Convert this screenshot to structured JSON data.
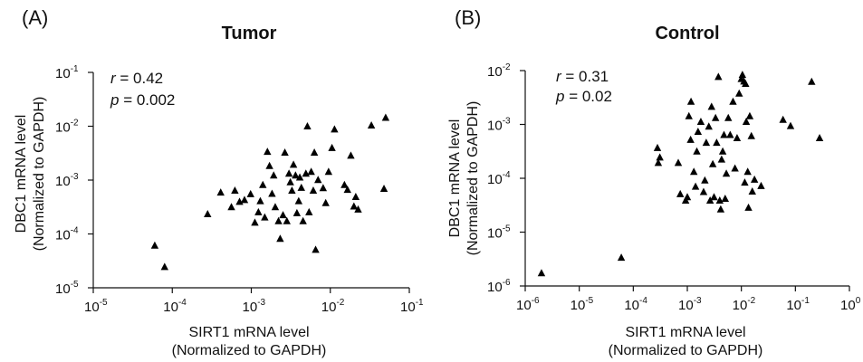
{
  "chart_data": [
    {
      "type": "scatter",
      "panel_label": "(A)",
      "title": "Tumor",
      "xlabel": [
        "SIRT1 mRNA level",
        "(Normalized to GAPDH)"
      ],
      "ylabel": [
        "DBC1 mRNA level",
        "(Normalized to GAPDH)"
      ],
      "xscale": "log",
      "yscale": "log",
      "xlim": [
        1e-05,
        0.1
      ],
      "ylim": [
        1e-05,
        0.1
      ],
      "x_ticks": [
        {
          "base": "10",
          "exp": "-5"
        },
        {
          "base": "10",
          "exp": "-4"
        },
        {
          "base": "10",
          "exp": "-3"
        },
        {
          "base": "10",
          "exp": "-2"
        },
        {
          "base": "10",
          "exp": "-1"
        }
      ],
      "y_ticks": [
        {
          "base": "10",
          "exp": "-5"
        },
        {
          "base": "10",
          "exp": "-4"
        },
        {
          "base": "10",
          "exp": "-3"
        },
        {
          "base": "10",
          "exp": "-2"
        },
        {
          "base": "10",
          "exp": "-1"
        }
      ],
      "stats": {
        "r_symbol": "r",
        "r_value": " = 0.42",
        "p_symbol": "p",
        "p_value": " = 0.002"
      },
      "marker": "triangle",
      "grid": false,
      "points": [
        [
          6e-05,
          6e-05
        ],
        [
          8e-05,
          2.4e-05
        ],
        [
          0.00028,
          0.00023
        ],
        [
          0.00041,
          0.00058
        ],
        [
          0.00056,
          0.00031
        ],
        [
          0.00062,
          0.00063
        ],
        [
          0.00071,
          0.00039
        ],
        [
          0.00082,
          0.00042
        ],
        [
          0.00098,
          0.00054
        ],
        [
          0.00111,
          0.00016
        ],
        [
          0.00123,
          0.00025
        ],
        [
          0.0013,
          0.0004
        ],
        [
          0.0014,
          0.0008
        ],
        [
          0.00148,
          0.0002
        ],
        [
          0.0016,
          0.0033
        ],
        [
          0.0017,
          0.0018
        ],
        [
          0.00183,
          0.00055
        ],
        [
          0.00192,
          0.0012
        ],
        [
          0.00201,
          0.00031
        ],
        [
          0.00221,
          0.00017
        ],
        [
          0.00232,
          8e-05
        ],
        [
          0.00252,
          0.00022
        ],
        [
          0.00266,
          0.0032
        ],
        [
          0.00282,
          0.00017
        ],
        [
          0.003,
          0.0013
        ],
        [
          0.00312,
          0.0009
        ],
        [
          0.00327,
          0.00063
        ],
        [
          0.00342,
          0.0019
        ],
        [
          0.00363,
          0.0012
        ],
        [
          0.00378,
          0.00024
        ],
        [
          0.00398,
          0.0004
        ],
        [
          0.00411,
          0.0011
        ],
        [
          0.0043,
          0.00071
        ],
        [
          0.00452,
          0.00017
        ],
        [
          0.00491,
          0.0013
        ],
        [
          0.00513,
          0.0098
        ],
        [
          0.00538,
          0.00025
        ],
        [
          0.00573,
          0.0014
        ],
        [
          0.00609,
          0.00063
        ],
        [
          0.00628,
          0.0032
        ],
        [
          0.00652,
          5e-05
        ],
        [
          0.007,
          0.00099
        ],
        [
          0.00812,
          0.0007
        ],
        [
          0.00875,
          0.00037
        ],
        [
          0.00951,
          0.0014
        ],
        [
          0.0105,
          0.0039
        ],
        [
          0.0113,
          0.0086
        ],
        [
          0.0151,
          0.0008
        ],
        [
          0.0165,
          0.00065
        ],
        [
          0.0182,
          0.0028
        ],
        [
          0.0199,
          0.00032
        ],
        [
          0.021,
          0.00048
        ],
        [
          0.0225,
          0.00028
        ],
        [
          0.0331,
          0.0102
        ],
        [
          0.0478,
          0.00068
        ],
        [
          0.0502,
          0.0142
        ]
      ]
    },
    {
      "type": "scatter",
      "panel_label": "(B)",
      "title": "Control",
      "xlabel": [
        "SIRT1 mRNA level",
        "(Normalized to GAPDH)"
      ],
      "ylabel": [
        "DBC1 mRNA level",
        "(Normalized to GAPDH)"
      ],
      "xscale": "log",
      "yscale": "log",
      "xlim": [
        1e-06,
        1
      ],
      "ylim": [
        1e-06,
        0.01
      ],
      "x_ticks": [
        {
          "base": "10",
          "exp": "-6"
        },
        {
          "base": "10",
          "exp": "-5"
        },
        {
          "base": "10",
          "exp": "-4"
        },
        {
          "base": "10",
          "exp": "-3"
        },
        {
          "base": "10",
          "exp": "-2"
        },
        {
          "base": "10",
          "exp": "-1"
        },
        {
          "base": "10",
          "exp": "0"
        }
      ],
      "y_ticks": [
        {
          "base": "10",
          "exp": "-6"
        },
        {
          "base": "10",
          "exp": "-5"
        },
        {
          "base": "10",
          "exp": "-4"
        },
        {
          "base": "10",
          "exp": "-3"
        },
        {
          "base": "10",
          "exp": "-2"
        }
      ],
      "stats": {
        "r_symbol": "r",
        "r_value": " = 0.31",
        "p_symbol": "p",
        "p_value": " = 0.02"
      },
      "marker": "triangle",
      "grid": false,
      "points": [
        [
          2e-06,
          1.7e-06
        ],
        [
          6e-05,
          3.3e-06
        ],
        [
          0.00028,
          0.00036
        ],
        [
          0.00029,
          0.00019
        ],
        [
          0.00031,
          0.00024
        ],
        [
          0.00068,
          0.00019
        ],
        [
          0.00074,
          5e-05
        ],
        [
          0.00093,
          3.8e-05
        ],
        [
          0.001,
          4.4e-05
        ],
        [
          0.00107,
          0.0014
        ],
        [
          0.00115,
          0.00051
        ],
        [
          0.00117,
          0.0026
        ],
        [
          0.00132,
          0.00013
        ],
        [
          0.00142,
          6.9e-05
        ],
        [
          0.0015,
          0.00031
        ],
        [
          0.00158,
          0.00072
        ],
        [
          0.00178,
          0.0011
        ],
        [
          0.002,
          5.5e-05
        ],
        [
          0.00211,
          9e-05
        ],
        [
          0.00224,
          0.00045
        ],
        [
          0.0025,
          0.0009
        ],
        [
          0.00264,
          3.8e-05
        ],
        [
          0.00281,
          0.0021
        ],
        [
          0.00296,
          0.00018
        ],
        [
          0.00312,
          4.4e-05
        ],
        [
          0.00333,
          0.0013
        ],
        [
          0.00349,
          0.00045
        ],
        [
          0.00376,
          0.0075
        ],
        [
          0.00398,
          3.8e-05
        ],
        [
          0.00415,
          2.6e-05
        ],
        [
          0.00431,
          0.00022
        ],
        [
          0.00452,
          0.00031
        ],
        [
          0.00477,
          0.00063
        ],
        [
          0.00502,
          4.1e-05
        ],
        [
          0.00527,
          0.00012
        ],
        [
          0.00573,
          0.0013
        ],
        [
          0.00621,
          0.00063
        ],
        [
          0.00701,
          0.0026
        ],
        [
          0.00762,
          0.00015
        ],
        [
          0.00833,
          0.00055
        ],
        [
          0.00911,
          0.0037
        ],
        [
          0.01,
          0.0069
        ],
        [
          0.01047,
          0.0082
        ],
        [
          0.01116,
          0.0062
        ],
        [
          0.01156,
          8.2e-05
        ],
        [
          0.01197,
          0.0056
        ],
        [
          0.01231,
          0.0011
        ],
        [
          0.01311,
          0.00013
        ],
        [
          0.01355,
          2.8e-05
        ],
        [
          0.0143,
          0.0014
        ],
        [
          0.01533,
          0.0006
        ],
        [
          0.01594,
          5.6e-05
        ],
        [
          0.0175,
          9.3e-05
        ],
        [
          0.0232,
          7.1e-05
        ],
        [
          0.0591,
          0.0012
        ],
        [
          0.0814,
          0.00092
        ],
        [
          0.2001,
          0.0061
        ],
        [
          0.2804,
          0.00055
        ]
      ]
    }
  ]
}
